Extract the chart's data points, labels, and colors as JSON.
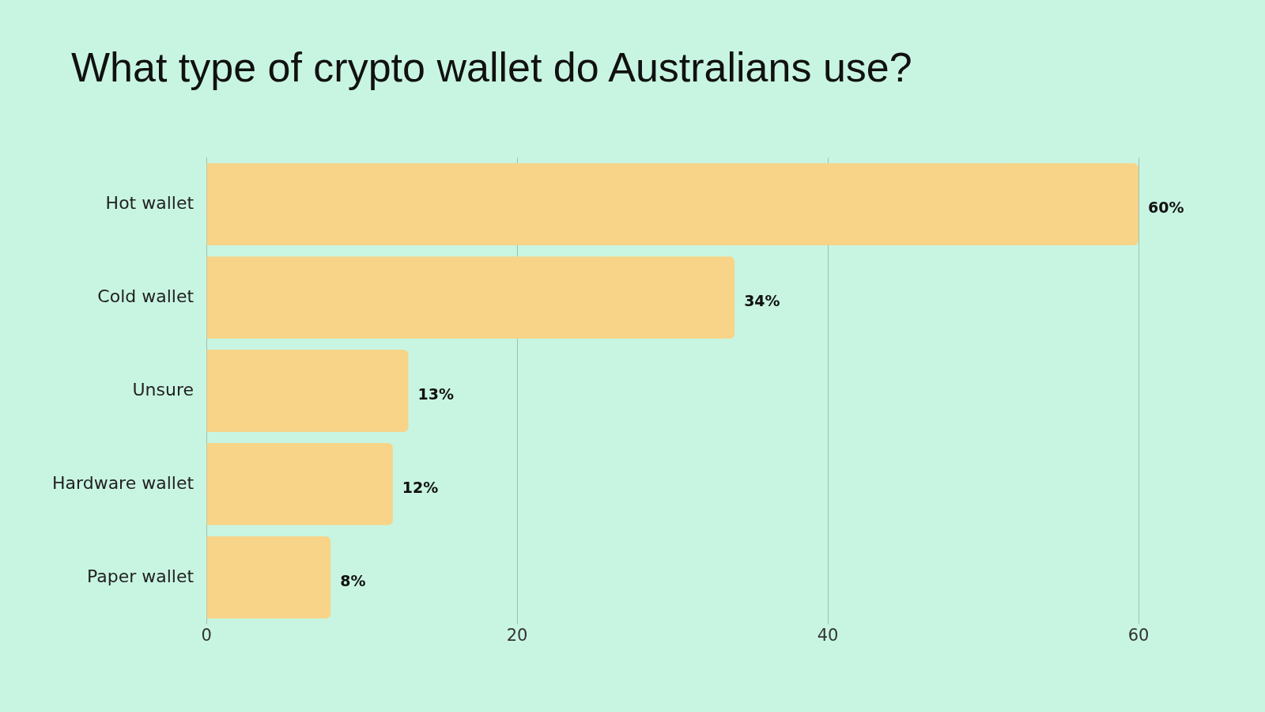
{
  "chart_data": {
    "type": "bar",
    "orientation": "horizontal",
    "title": "What type of crypto wallet do Australians use?",
    "categories": [
      "Hot wallet",
      "Cold wallet",
      "Unsure",
      "Hardware wallet",
      "Paper wallet"
    ],
    "values": [
      60,
      34,
      13,
      12,
      8
    ],
    "value_labels": [
      "60%",
      "34%",
      "13%",
      "12%",
      "8%"
    ],
    "color": "#f7d488",
    "xlim": [
      0,
      60
    ],
    "xticks": [
      0,
      20,
      40,
      60
    ],
    "grid": "x",
    "legend": false
  }
}
